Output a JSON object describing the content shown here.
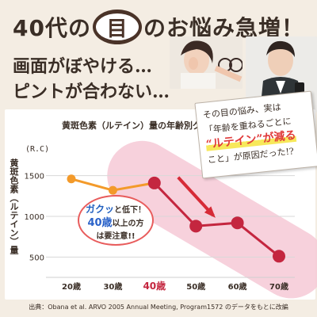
{
  "headline": {
    "part1": "40代の",
    "eye_char": "目",
    "part2": "のお悩み急増！"
  },
  "subheads": {
    "line1": "画面がぼやける…",
    "line2": "ピントが合わない…"
  },
  "callout": {
    "line1": "その目の悩み、実は",
    "line2": "「年齢を重ねるごとに",
    "highlight": "“ルテイン”が減る",
    "line4": "こと」が原因だった!?"
  },
  "bubble": {
    "line1a": "ガクッ",
    "line1b": "と低下！",
    "line2a": "40歳",
    "line2b": "以上の方",
    "line3": "は要注意!!"
  },
  "source": "出典：Obana et al. ARVO 2005 Annual Meeting, Program1572 のデータをもとに改編",
  "colors": {
    "background": "#f4ede3",
    "young_series": "#f39a2a",
    "old_series": "#c4263f",
    "highlight_band": "#f6c9d6",
    "arrow": "#d62b37",
    "accent_red": "#e03a3a",
    "accent_blue": "#1f5fbf"
  },
  "chart_data": {
    "type": "line",
    "title": "黄斑色素（ルテイン）量の年齢別グラフ",
    "ylabel": "黄斑色素（ルテイン）量",
    "yunit": "(R.C)",
    "categories": [
      "20歳",
      "30歳",
      "40歳",
      "50歳",
      "60歳",
      "70歳"
    ],
    "highlight_category": "40歳",
    "yticks": [
      500,
      1000,
      1500
    ],
    "ylim": [
      250,
      1750
    ],
    "series": [
      {
        "role": "under-40",
        "x": [
          "20歳",
          "30歳",
          "40歳"
        ],
        "values": [
          1460,
          1320,
          1410
        ]
      },
      {
        "role": "40-and-over",
        "x": [
          "40歳",
          "50歳",
          "60歳",
          "70歳"
        ],
        "values": [
          1410,
          880,
          920,
          510
        ]
      }
    ],
    "grid": true
  }
}
